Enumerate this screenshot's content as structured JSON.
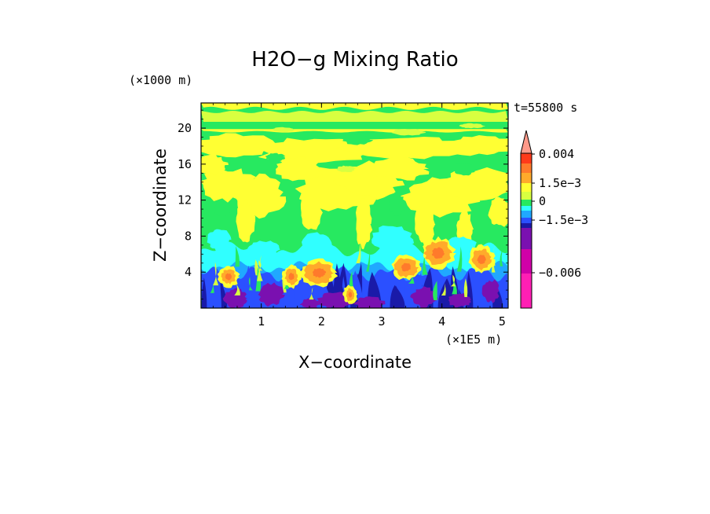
{
  "chart_data": {
    "type": "heatmap",
    "title": "H2O−g Mixing Ratio",
    "xlabel": "X−coordinate",
    "ylabel": "Z−coordinate",
    "x_unit": "(×1E5 m)",
    "y_unit": "(×1000 m)",
    "time_label": "t=55800 s",
    "xlim": [
      0,
      5.1
    ],
    "ylim": [
      0,
      22.8
    ],
    "x_ticks": [
      1,
      2,
      3,
      4,
      5
    ],
    "y_ticks": [
      4,
      8,
      12,
      16,
      20
    ],
    "colorbar": {
      "levels": [
        -0.0085,
        -0.006,
        -0.0035,
        -0.002,
        -0.0015,
        -0.0008,
        -0.0003,
        0.0,
        0.0005,
        0.001,
        0.0015,
        0.002,
        0.003,
        0.004
      ],
      "colors": [
        "#ff1fb4",
        "#d000a8",
        "#7a10b0",
        "#1a1aa8",
        "#2b50ff",
        "#20a8ff",
        "#30ffff",
        "#27e960",
        "#d8ff40",
        "#ffff33",
        "#ffaa2b",
        "#ff7a2b",
        "#ff3a1a",
        "#ff9a8a"
      ],
      "tick_labels": [
        "0.004",
        "1.5e−3",
        "0",
        "−1.5e−3",
        "−0.006"
      ],
      "extend": "max"
    }
  }
}
